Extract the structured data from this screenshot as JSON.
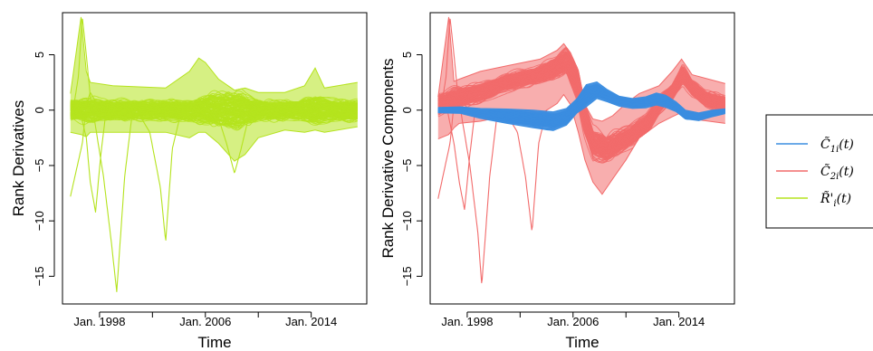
{
  "colors": {
    "c1": "#3b8de0",
    "c2": "#f26b6b",
    "r": "#b5e31e"
  },
  "legend": {
    "items": [
      {
        "label": "C̃1i(t)",
        "glyph": "C̃",
        "sub": "1i",
        "tail": "(t)",
        "color": "#3b8de0"
      },
      {
        "label": "C̃2i(t)",
        "glyph": "C̃",
        "sub": "2i",
        "tail": "(t)",
        "color": "#f26b6b"
      },
      {
        "label": "R̃'i(t)",
        "glyph": "R̃'",
        "sub": "i",
        "tail": "(t)",
        "color": "#b5e31e"
      }
    ]
  },
  "chart_data": [
    {
      "type": "line",
      "title": "",
      "xlabel": "Time",
      "ylabel": "Rank Derivatives",
      "xlim": [
        1995.2,
        2018.2
      ],
      "ylim": [
        -17.5,
        8.8
      ],
      "x_ticks": [
        1998,
        2006,
        2014
      ],
      "x_tick_labels": [
        "Jan. 1998",
        "Jan. 2006",
        "Jan. 2014"
      ],
      "x_minor_ticks": [
        2002,
        2010
      ],
      "y_ticks": [
        -15,
        -10,
        -5,
        0,
        5
      ],
      "y_tick_labels": [
        "−15",
        "−10",
        "−5",
        "0",
        "5"
      ],
      "series": [
        {
          "key": "R",
          "color": "#b5e31e",
          "curve_count": 140,
          "band": {
            "x": [
              1995.8,
              1997,
              1999,
              2003,
              2005,
              2006.5,
              2008.5,
              2010,
              2013,
              2014.5,
              2015.5,
              2017.5
            ],
            "half_width": [
              1.2,
              1.4,
              1.2,
              1.2,
              1.3,
              2.0,
              2.2,
              1.2,
              1.2,
              1.8,
              1.3,
              1.2
            ]
          },
          "envelope": {
            "x": [
              1995.8,
              1996.6,
              1997.0,
              1997.3,
              1999.0,
              2003.0,
              2004.8,
              2005.5,
              2006.0,
              2007.0,
              2008.2,
              2009.0,
              2010.0,
              2012.0,
              2013.5,
              2014.3,
              2015.0,
              2017.5
            ],
            "upper": [
              1.5,
              8.4,
              3.5,
              2.5,
              2.2,
              2.0,
              3.5,
              4.7,
              4.3,
              2.8,
              1.8,
              2.0,
              1.6,
              1.6,
              2.2,
              3.8,
              2.0,
              2.5
            ],
            "lower": [
              -2.0,
              -2.2,
              -2.4,
              -2.0,
              -2.0,
              -2.0,
              -2.5,
              -2.0,
              -2.0,
              -3.0,
              -4.6,
              -4.0,
              -2.5,
              -1.8,
              -2.0,
              -1.8,
              -2.0,
              -1.5
            ]
          },
          "spikes": [
            {
              "x": [
                1995.8,
                1996.7,
                1997.0,
                1997.3,
                1997.6,
                1998.0,
                1998.4
              ],
              "y": [
                -7.8,
                -3.0,
                0.5,
                1.6,
                1.0,
                -0.3,
                0.0
              ]
            },
            {
              "x": [
                1996.0,
                1996.4,
                1996.7,
                1997.0,
                1997.4,
                1997.8
              ],
              "y": [
                0.0,
                3.0,
                8.4,
                5.0,
                0.0,
                0.0
              ]
            },
            {
              "x": [
                1996.5,
                1997.0,
                1997.3,
                1997.7,
                1998.1,
                1998.5
              ],
              "y": [
                0.0,
                -2.5,
                -6.5,
                -9.2,
                -4.0,
                0.0
              ]
            },
            {
              "x": [
                1997.5,
                1998.3,
                1998.9,
                1999.3,
                1999.9,
                2000.5
              ],
              "y": [
                0.0,
                -6.0,
                -12.0,
                -16.4,
                -6.0,
                0.0
              ]
            },
            {
              "x": [
                2000.8,
                2001.8,
                2002.6,
                2003.0,
                2003.5,
                2004.2
              ],
              "y": [
                0.0,
                -2.0,
                -7.0,
                -11.9,
                -3.5,
                0.0
              ]
            },
            {
              "x": [
                2006.8,
                2007.6,
                2008.2,
                2008.7,
                2009.4
              ],
              "y": [
                0.0,
                -3.0,
                -5.7,
                -3.5,
                0.0
              ]
            }
          ]
        }
      ]
    },
    {
      "type": "line",
      "title": "",
      "xlabel": "Time",
      "ylabel": "Rank Derivative Components",
      "xlim": [
        1995.2,
        2018.2
      ],
      "ylim": [
        -17.5,
        8.8
      ],
      "x_ticks": [
        1998,
        2006,
        2014
      ],
      "x_tick_labels": [
        "Jan. 1998",
        "Jan. 2006",
        "Jan. 2014"
      ],
      "x_minor_ticks": [
        2002,
        2010
      ],
      "y_ticks": [
        -15,
        -10,
        -5,
        0,
        5
      ],
      "y_tick_labels": [
        "−15",
        "−10",
        "−5",
        "0",
        "5"
      ],
      "series": [
        {
          "key": "C2",
          "color": "#f26b6b",
          "curve_count": 160,
          "shape": {
            "x": [
              1995.8,
              1997.0,
              1999.0,
              2001.0,
              2003.0,
              2004.5,
              2005.5,
              2006.3,
              2006.8,
              2007.5,
              2008.5,
              2010.0,
              2011.5,
              2012.5,
              2013.5,
              2014.3,
              2015.0,
              2016.0,
              2017.5
            ],
            "y": [
              0.4,
              1.0,
              1.5,
              2.5,
              3.0,
              3.6,
              4.4,
              2.4,
              -0.5,
              -3.0,
              -3.6,
              -2.6,
              -1.5,
              0.5,
              1.6,
              3.2,
              2.0,
              1.0,
              0.5
            ]
          },
          "band": {
            "x": [
              1995.8,
              1999.0,
              2003.0,
              2005.5,
              2006.5,
              2007.5,
              2009.0,
              2011.0,
              2013.5,
              2014.3,
              2015.5,
              2017.5
            ],
            "half_width": [
              1.3,
              1.2,
              1.0,
              1.6,
              2.2,
              1.8,
              1.6,
              1.3,
              1.0,
              1.2,
              1.0,
              1.0
            ]
          },
          "envelope": {
            "x": [
              1995.8,
              1996.6,
              1997.0,
              1997.4,
              1999.0,
              2001.0,
              2003.5,
              2004.8,
              2005.3,
              2005.8,
              2006.4,
              2006.9,
              2007.5,
              2008.2,
              2009.0,
              2010.0,
              2011.0,
              2012.5,
              2013.5,
              2014.2,
              2015.0,
              2017.5
            ],
            "upper": [
              1.2,
              8.4,
              2.6,
              2.8,
              3.5,
              4.0,
              4.6,
              5.4,
              6.0,
              5.2,
              3.6,
              0.5,
              -0.8,
              -1.0,
              -0.5,
              0.6,
              1.5,
              2.2,
              3.5,
              4.6,
              3.2,
              2.4
            ],
            "lower": [
              -2.6,
              -2.2,
              -1.6,
              -1.2,
              -1.0,
              -0.5,
              -0.4,
              0.6,
              1.4,
              0.5,
              -2.0,
              -4.5,
              -6.5,
              -7.6,
              -6.2,
              -4.5,
              -2.5,
              -1.2,
              -0.6,
              -0.2,
              -0.8,
              -1.2
            ]
          },
          "spikes": [
            {
              "x": [
                1995.8,
                1996.7,
                1997.0,
                1997.3,
                1997.7,
                1998.2
              ],
              "y": [
                -8.0,
                -3.0,
                0.5,
                1.8,
                0.6,
                0.0
              ]
            },
            {
              "x": [
                1996.0,
                1996.4,
                1996.7,
                1997.0,
                1997.4,
                1997.8
              ],
              "y": [
                0.0,
                3.0,
                8.4,
                5.0,
                0.0,
                0.0
              ]
            },
            {
              "x": [
                1996.5,
                1997.0,
                1997.4,
                1997.8,
                1998.2,
                1998.6
              ],
              "y": [
                0.0,
                -3.0,
                -6.5,
                -9.0,
                -4.0,
                0.0
              ]
            },
            {
              "x": [
                1997.5,
                1998.2,
                1998.8,
                1999.1,
                1999.7,
                2000.3
              ],
              "y": [
                0.0,
                -5.0,
                -11.0,
                -15.8,
                -6.0,
                0.0
              ]
            },
            {
              "x": [
                2000.8,
                2001.8,
                2002.4,
                2002.9,
                2003.4,
                2004.0
              ],
              "y": [
                0.0,
                -2.0,
                -6.0,
                -11.0,
                -3.0,
                0.0
              ]
            }
          ]
        },
        {
          "key": "C1",
          "color": "#3b8de0",
          "curve_count": 160,
          "shape": {
            "x": [
              1995.8,
              1997.5,
              1999.0,
              2001.0,
              2003.0,
              2004.5,
              2005.5,
              2006.3,
              2007.0,
              2007.8,
              2008.6,
              2009.5,
              2010.5,
              2011.5,
              2012.3,
              2013.0,
              2013.8,
              2014.5,
              2015.5,
              2016.5,
              2017.5
            ],
            "y": [
              0.0,
              0.0,
              -0.3,
              -0.55,
              -0.8,
              -1.0,
              -0.6,
              0.4,
              1.3,
              1.8,
              1.3,
              0.8,
              0.6,
              0.7,
              1.0,
              0.8,
              0.3,
              -0.4,
              -0.6,
              -0.3,
              -0.1
            ]
          },
          "band": {
            "x": [
              1995.8,
              1997.5,
              1999.0,
              2001.0,
              2003.0,
              2004.5,
              2005.5,
              2006.3,
              2007.0,
              2007.8,
              2008.6,
              2009.5,
              2010.5,
              2011.5,
              2012.3,
              2013.0,
              2013.8,
              2014.5,
              2015.5,
              2016.5,
              2017.5
            ],
            "half_width": [
              0.25,
              0.3,
              0.45,
              0.65,
              0.8,
              0.85,
              0.75,
              0.65,
              1.0,
              0.75,
              0.55,
              0.45,
              0.45,
              0.5,
              0.55,
              0.55,
              0.45,
              0.4,
              0.35,
              0.3,
              0.22
            ]
          },
          "envelope": {
            "x": [
              1995.8,
              1997.5,
              1999.0,
              2001.0,
              2003.0,
              2004.5,
              2005.5,
              2006.3,
              2007.0,
              2007.8,
              2008.6,
              2009.5,
              2010.5,
              2011.5,
              2012.3,
              2013.0,
              2013.8,
              2014.5,
              2015.5,
              2016.5,
              2017.5
            ],
            "upper": [
              0.25,
              0.3,
              0.15,
              0.1,
              0.0,
              -0.15,
              0.15,
              1.05,
              2.3,
              2.55,
              1.85,
              1.25,
              1.05,
              1.2,
              1.55,
              1.35,
              0.75,
              0.0,
              -0.25,
              0.0,
              0.12
            ],
            "lower": [
              -0.25,
              -0.3,
              -0.75,
              -1.2,
              -1.6,
              -1.85,
              -1.35,
              -0.25,
              0.3,
              1.05,
              0.75,
              0.35,
              0.15,
              0.2,
              0.45,
              0.25,
              -0.15,
              -0.8,
              -0.95,
              -0.6,
              -0.32
            ]
          },
          "spikes": []
        }
      ]
    }
  ]
}
